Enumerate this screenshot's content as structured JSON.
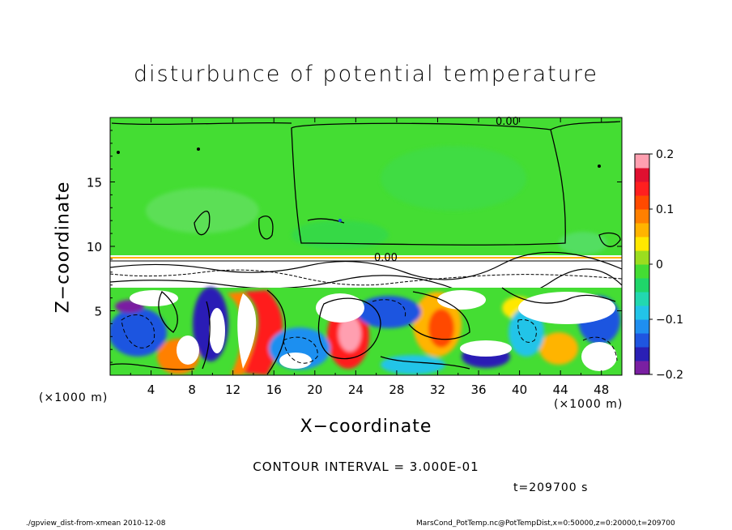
{
  "chart_data": {
    "type": "heatmap",
    "title": "disturbunce of potential temperature",
    "xlabel": "X−coordinate",
    "ylabel": "Z−coordinate",
    "x_unit_left": "(×1000 m)",
    "x_unit_right": "(×1000 m)",
    "xlim": [
      0,
      50
    ],
    "ylim": [
      0,
      20
    ],
    "x_ticks": [
      "4",
      "8",
      "12",
      "16",
      "20",
      "24",
      "28",
      "32",
      "36",
      "40",
      "44",
      "48"
    ],
    "x_tick_values": [
      4,
      8,
      12,
      16,
      20,
      24,
      28,
      32,
      36,
      40,
      44,
      48
    ],
    "y_ticks": [
      "5",
      "10",
      "15"
    ],
    "y_tick_values": [
      5,
      10,
      15
    ],
    "colorbar": {
      "min": -0.2,
      "max": 0.2,
      "tick_labels": [
        "0.2",
        "0.1",
        "0",
        "−0.1",
        "−0.2"
      ],
      "tick_values": [
        0.2,
        0.1,
        0,
        -0.1,
        -0.2
      ],
      "colors": [
        "#7a1fa2",
        "#2a1fb5",
        "#1f55e0",
        "#1f8ff0",
        "#22c4e8",
        "#22d8b0",
        "#1fd66a",
        "#44dd33",
        "#9bdd1f",
        "#ffe800",
        "#ffb400",
        "#ff8000",
        "#ff4a00",
        "#ff1f1f",
        "#e01030",
        "#ff9fb0"
      ]
    },
    "contour_labels": [
      "0.00",
      "0.00"
    ],
    "regions": {
      "upper_layer_z": [
        9,
        20
      ],
      "upper_layer_value": 0.0,
      "turbulent_layer_z": [
        0,
        9
      ],
      "turbulent_layer_value_range": [
        -0.2,
        0.2
      ]
    },
    "contour_interval_text": "CONTOUR INTERVAL = 3.000E-01",
    "time_text": "t=209700 s"
  },
  "footer": {
    "left": "./gpview_dist-from-xmean  2010-12-08",
    "right": "MarsCond_PotTemp.nc@PotTempDist,x=0:50000,z=0:20000,t=209700"
  }
}
